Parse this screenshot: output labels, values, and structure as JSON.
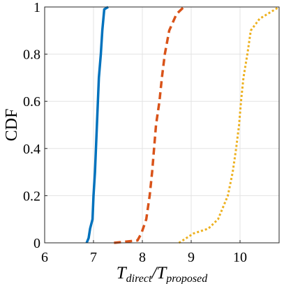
{
  "chart_data": {
    "type": "line",
    "title": "",
    "xlabel": {
      "base_left": "T",
      "sub_left": "direct",
      "separator": "/",
      "base_right": "T",
      "sub_right": "proposed"
    },
    "ylabel": "CDF",
    "xlim": [
      6,
      10.8
    ],
    "ylim": [
      0,
      1
    ],
    "xticks": [
      6,
      7,
      8,
      9,
      10
    ],
    "yticks": [
      0,
      0.2,
      0.4,
      0.6,
      0.8,
      1
    ],
    "ytick_labels": [
      "0",
      "0.2",
      "0.4",
      "0.6",
      "0.8",
      "1"
    ],
    "grid": true,
    "series": [
      {
        "color": "#0072BD",
        "style": "solid",
        "points": [
          [
            6.86,
            0
          ],
          [
            6.9,
            0.02
          ],
          [
            6.93,
            0.06
          ],
          [
            6.98,
            0.1
          ],
          [
            7.0,
            0.2
          ],
          [
            7.03,
            0.3
          ],
          [
            7.05,
            0.4
          ],
          [
            7.07,
            0.5
          ],
          [
            7.09,
            0.6
          ],
          [
            7.11,
            0.7
          ],
          [
            7.15,
            0.8
          ],
          [
            7.18,
            0.9
          ],
          [
            7.22,
            0.99
          ],
          [
            7.3,
            1.0
          ]
        ]
      },
      {
        "color": "#D95319",
        "style": "dashed",
        "points": [
          [
            7.42,
            0
          ],
          [
            7.9,
            0.01
          ],
          [
            7.98,
            0.04
          ],
          [
            8.08,
            0.1
          ],
          [
            8.15,
            0.2
          ],
          [
            8.2,
            0.3
          ],
          [
            8.24,
            0.4
          ],
          [
            8.28,
            0.5
          ],
          [
            8.35,
            0.6
          ],
          [
            8.4,
            0.7
          ],
          [
            8.46,
            0.8
          ],
          [
            8.55,
            0.9
          ],
          [
            8.7,
            0.97
          ],
          [
            8.85,
            1.0
          ]
        ]
      },
      {
        "color": "#EDB120",
        "style": "dotted",
        "points": [
          [
            8.75,
            0
          ],
          [
            8.9,
            0.02
          ],
          [
            9.05,
            0.04
          ],
          [
            9.2,
            0.05
          ],
          [
            9.35,
            0.06
          ],
          [
            9.55,
            0.1
          ],
          [
            9.75,
            0.2
          ],
          [
            9.85,
            0.3
          ],
          [
            9.92,
            0.4
          ],
          [
            9.98,
            0.5
          ],
          [
            10.02,
            0.6
          ],
          [
            10.07,
            0.7
          ],
          [
            10.15,
            0.8
          ],
          [
            10.22,
            0.9
          ],
          [
            10.4,
            0.95
          ],
          [
            10.8,
            1.0
          ]
        ]
      }
    ]
  }
}
